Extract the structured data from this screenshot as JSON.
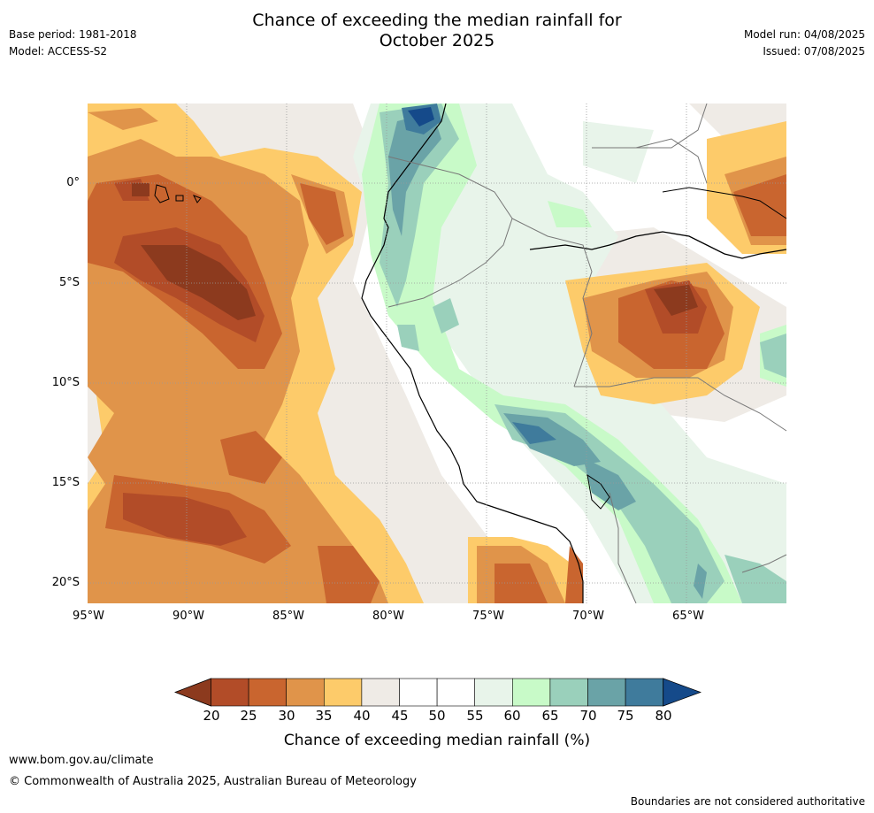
{
  "header": {
    "base_period": "Base period: 1981-2018",
    "model": "Model: ACCESS-S2",
    "title_line1": "Chance of exceeding the median rainfall for",
    "title_line2": "October 2025",
    "model_run": "Model run: 04/08/2025",
    "issued": "Issued: 07/08/2025"
  },
  "map": {
    "lat_ticks": [
      "0°",
      "5°S",
      "10°S",
      "15°S",
      "20°S"
    ],
    "lon_ticks": [
      "95°W",
      "90°W",
      "85°W",
      "80°W",
      "75°W",
      "70°W",
      "65°W"
    ]
  },
  "legend": {
    "title": "Chance of exceeding median rainfall (%)",
    "labels": [
      "20",
      "25",
      "30",
      "35",
      "40",
      "45",
      "50",
      "55",
      "60",
      "65",
      "70",
      "75",
      "80"
    ],
    "colors": [
      "#8c3a1e",
      "#b24c28",
      "#c9652f",
      "#e0944a",
      "#fdcb6a",
      "#efebe6",
      "#ffffff",
      "#ffffff",
      "#e8f4ea",
      "#c8fac8",
      "#9ad0bb",
      "#6aa3a7",
      "#3f7b9c",
      "#154a8a"
    ]
  },
  "footer": {
    "url": "www.bom.gov.au/climate",
    "copyright": "© Commonwealth of Australia 2025, Australian Bureau of Meteorology",
    "disclaimer": "Boundaries are not considered authoritative"
  }
}
